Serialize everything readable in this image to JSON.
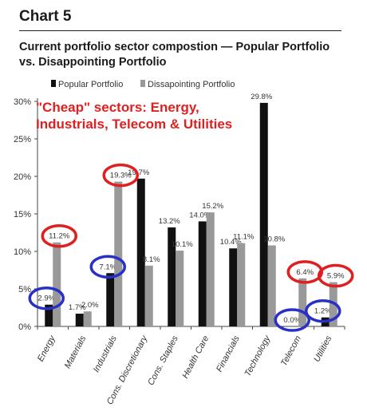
{
  "header": {
    "chart_label": "Chart 5",
    "title_line1": "Current portfolio sector compostion — Popular Portfolio",
    "title_line2": "vs. Disappointing Portfolio"
  },
  "annotation": {
    "line1": "\"Cheap\" sectors: Energy,",
    "line2": "Industrials, Telecom & Utilities",
    "color": "#e02020"
  },
  "chart_data": {
    "type": "bar",
    "categories": [
      "Energy",
      "Materials",
      "Industrials",
      "Cons. Discretionary",
      "Cons. Staples",
      "Health Care",
      "Financials",
      "Technology",
      "Telecom",
      "Utilities"
    ],
    "series": [
      {
        "name": "Popular Portfolio",
        "color": "#111111",
        "values": [
          2.9,
          1.7,
          7.1,
          19.7,
          13.2,
          14.0,
          10.4,
          29.8,
          0.0,
          1.2
        ],
        "labels": [
          "2.9%",
          "1.7%",
          "7.1%",
          "19.7%",
          "13.2%",
          "14.0%",
          "10.4%",
          "29.8%",
          "0.0%",
          "1.2%"
        ]
      },
      {
        "name": "Dissapointing Portfolio",
        "color": "#999999",
        "values": [
          11.2,
          2.0,
          19.3,
          8.1,
          10.1,
          15.2,
          11.1,
          10.8,
          6.4,
          5.9
        ],
        "labels": [
          "11.2%",
          "2.0%",
          "19.3%",
          "8.1%",
          "10.1%",
          "15.2%",
          "11.1%",
          "10.8%",
          "6.4%",
          "5.9%"
        ]
      }
    ],
    "ylim": [
      0,
      30
    ],
    "yticks": [
      "0%",
      "5%",
      "10%",
      "15%",
      "20%",
      "25%",
      "30%"
    ],
    "grid": false,
    "legend_position": "top-left",
    "circled": {
      "red": [
        [
          "Dissapointing Portfolio",
          "Energy"
        ],
        [
          "Dissapointing Portfolio",
          "Industrials"
        ],
        [
          "Dissapointing Portfolio",
          "Telecom"
        ],
        [
          "Dissapointing Portfolio",
          "Utilities"
        ]
      ],
      "blue": [
        [
          "Popular Portfolio",
          "Energy"
        ],
        [
          "Popular Portfolio",
          "Industrials"
        ],
        [
          "Popular Portfolio",
          "Telecom"
        ],
        [
          "Popular Portfolio",
          "Utilities"
        ]
      ],
      "red_color": "#e02020",
      "blue_color": "#2830c8"
    }
  }
}
